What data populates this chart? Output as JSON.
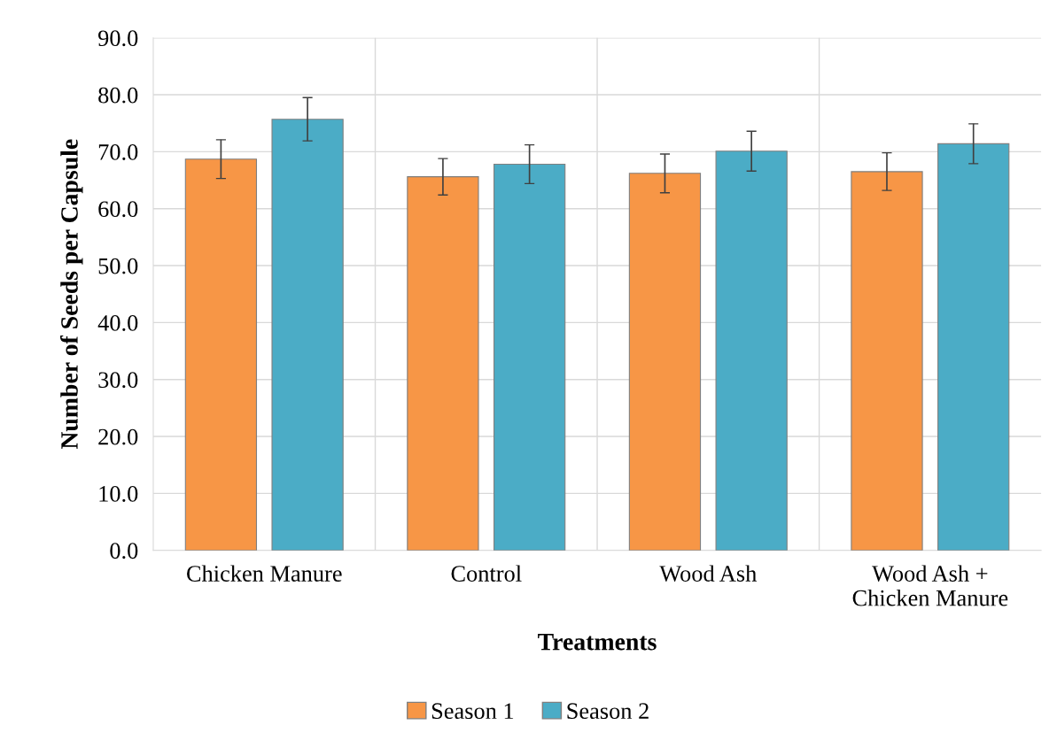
{
  "chart_data": {
    "type": "bar",
    "xlabel": "Treatments",
    "ylabel": "Number of Seeds per Capsule",
    "categories": [
      "Chicken Manure",
      "Control",
      "Wood Ash",
      "Wood Ash +\nChicken Manure"
    ],
    "series": [
      {
        "name": "Season 1",
        "color": "#f79646",
        "values": [
          68.7,
          65.6,
          66.2,
          66.5
        ],
        "errors": [
          3.4,
          3.2,
          3.4,
          3.3
        ]
      },
      {
        "name": "Season 2",
        "color": "#4bacc6",
        "values": [
          75.7,
          67.8,
          70.1,
          71.4
        ],
        "errors": [
          3.8,
          3.4,
          3.5,
          3.5
        ]
      }
    ],
    "ylim": [
      0,
      90
    ],
    "yticks": [
      {
        "value": 0,
        "label": "0.0"
      },
      {
        "value": 10,
        "label": "10.0"
      },
      {
        "value": 20,
        "label": "20.0"
      },
      {
        "value": 30,
        "label": "30.0"
      },
      {
        "value": 40,
        "label": "40.0"
      },
      {
        "value": 50,
        "label": "50.0"
      },
      {
        "value": 60,
        "label": "60.0"
      },
      {
        "value": 70,
        "label": "70.0"
      },
      {
        "value": 80,
        "label": "80.0"
      },
      {
        "value": 90,
        "label": "90.0"
      }
    ],
    "grid": true,
    "legend": "bottom"
  }
}
